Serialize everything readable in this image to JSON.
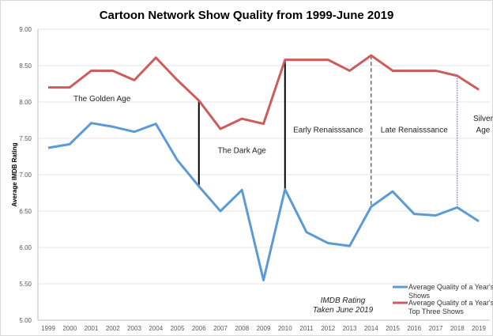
{
  "chart_data": {
    "type": "line",
    "title": "Cartoon Network Show Quality from 1999-June 2019",
    "xlabel": "",
    "ylabel": "Average IMDB Rating",
    "ylim": [
      5.0,
      9.0
    ],
    "yticks": [
      "5.00",
      "5.50",
      "6.00",
      "6.50",
      "7.00",
      "7.50",
      "8.00",
      "8.50",
      "9.00"
    ],
    "grid": true,
    "legend_placement": "bottom-right",
    "x": [
      "1999",
      "2000",
      "2001",
      "2002",
      "2003",
      "2004",
      "2005",
      "2006",
      "2007",
      "2008",
      "2009",
      "2010",
      "2011",
      "2012",
      "2013",
      "2014",
      "2015",
      "2016",
      "2017",
      "2018",
      "2019"
    ],
    "series": [
      {
        "name": "Average Quality of a Year's Shows",
        "legend_lines": [
          "Average Quality of a Year's",
          "Shows"
        ],
        "color": "#5b9bd5",
        "values": [
          7.37,
          7.42,
          7.71,
          7.66,
          7.59,
          7.7,
          7.2,
          6.84,
          6.5,
          6.79,
          5.55,
          6.8,
          6.21,
          6.06,
          6.02,
          6.56,
          6.77,
          6.46,
          6.44,
          6.55,
          6.36
        ]
      },
      {
        "name": "Average Quality of a Year's Top Three Shows",
        "legend_lines": [
          "Average Quality of a Year's",
          "Top Three Shows"
        ],
        "color": "#cd5c5c",
        "values": [
          8.2,
          8.2,
          8.43,
          8.43,
          8.3,
          8.61,
          8.3,
          8.02,
          7.63,
          7.77,
          7.7,
          8.58,
          8.58,
          8.58,
          8.43,
          8.64,
          8.43,
          8.43,
          8.43,
          8.36,
          8.17
        ]
      }
    ],
    "dividers": [
      {
        "year": "2006",
        "style": "solid",
        "color": "#000000"
      },
      {
        "year": "2010",
        "style": "solid",
        "color": "#000000"
      },
      {
        "year": "2014",
        "style": "dashed",
        "color": "#6e6e6e"
      },
      {
        "year": "2018",
        "style": "dotted",
        "color": "#7b68c8"
      }
    ],
    "annotations": [
      {
        "text": "The Golden Age",
        "at_year": 2001.5,
        "at_value": 8.01
      },
      {
        "text": "The Dark Age",
        "at_year": 2008.0,
        "at_value": 7.3
      },
      {
        "text": "Early Renaisssance",
        "at_year": 2012.0,
        "at_value": 7.58
      },
      {
        "text": "Late Renaisssance",
        "at_year": 2016.0,
        "at_value": 7.58
      },
      {
        "text": "Silver",
        "at_year": 2019.2,
        "at_value": 7.74
      },
      {
        "text": "Age",
        "at_year": 2019.2,
        "at_value": 7.58
      }
    ],
    "note_lines": [
      "IMDB Rating",
      "Taken June 2019"
    ]
  }
}
